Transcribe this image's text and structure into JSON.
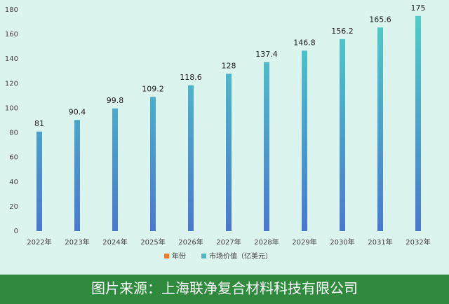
{
  "chart_data": {
    "type": "bar",
    "categories": [
      "2022年",
      "2023年",
      "2024年",
      "2025年",
      "2026年",
      "2027年",
      "2028年",
      "2029年",
      "2030年",
      "2031年",
      "2032年"
    ],
    "values": [
      81,
      90.4,
      99.8,
      109.2,
      118.6,
      128,
      137.4,
      146.8,
      156.2,
      165.6,
      175
    ],
    "color_top": "#4fd0c6",
    "color_bottom": "#4a78cf",
    "ylim": [
      0,
      180
    ],
    "yticks": [
      0,
      20,
      40,
      60,
      80,
      100,
      120,
      140,
      160,
      180
    ],
    "legend": [
      {
        "name": "年份",
        "color": "#ed7d31"
      },
      {
        "name": "市场价值（亿美元）",
        "color": "#4bb8c8"
      }
    ],
    "source": "图片来源：上海联净复合材料科技有限公司"
  }
}
